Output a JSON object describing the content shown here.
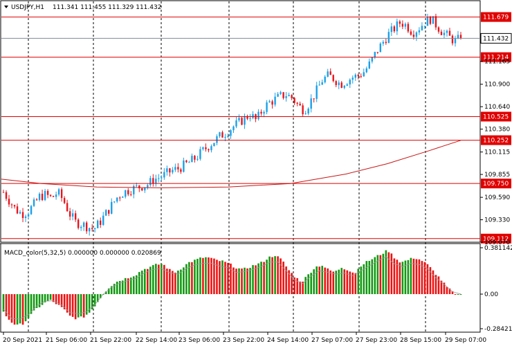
{
  "header": {
    "symbol_text": "USDJPY,H1",
    "ohlc_text": "111.341 111.455 111.329 111.432"
  },
  "price_axis": {
    "ticks": [
      "111.165",
      "110.900",
      "110.640",
      "110.380",
      "110.115",
      "109.855",
      "109.590",
      "109.330",
      "109.070"
    ]
  },
  "levels": [
    {
      "label": "111.679",
      "value": 111.679
    },
    {
      "label": "111.214",
      "value": 111.214
    },
    {
      "label": "110.525",
      "value": 110.525
    },
    {
      "label": "110.252",
      "value": 110.252
    },
    {
      "label": "109.750",
      "value": 109.75
    },
    {
      "label": "109.112",
      "value": 109.112
    }
  ],
  "current_price": {
    "label": "111.432",
    "value": 111.432
  },
  "time_axis": {
    "labels": [
      "20 Sep 2021",
      "21 Sep 06:00",
      "21 Sep 22:00",
      "22 Sep 14:00",
      "23 Sep 06:00",
      "23 Sep 22:00",
      "24 Sep 14:00",
      "27 Sep 07:00",
      "27 Sep 23:00",
      "28 Sep 15:00",
      "29 Sep 07:00"
    ]
  },
  "macd": {
    "title": "MACD_color(5,32,5) 0.000000 0.000000 0.020869",
    "ticks": [
      "0.381142",
      "0.00",
      "-0.284218"
    ]
  },
  "colors": {
    "bull": "#1aa0e8",
    "bear": "#e8141c",
    "level": "#e00000",
    "ma": "#c81414",
    "macd_up": "#119911",
    "macd_down": "#ee1111",
    "grid": "#000000",
    "bid_line": "#7d8a96"
  },
  "chart_data": {
    "type": "candlestick",
    "price_range": [
      109.07,
      111.86
    ],
    "macd_range": [
      -0.284218,
      0.381142
    ],
    "close_path": [
      109.65,
      109.55,
      109.45,
      109.4,
      109.42,
      109.5,
      109.6,
      109.62,
      109.58,
      109.65,
      109.55,
      109.4,
      109.3,
      109.28,
      109.25,
      109.22,
      109.3,
      109.4,
      109.5,
      109.6,
      109.65,
      109.68,
      109.7,
      109.72,
      109.74,
      109.8,
      109.82,
      109.86,
      109.9,
      109.92,
      109.96,
      110.0,
      110.05,
      110.12,
      110.18,
      110.24,
      110.3,
      110.34,
      110.4,
      110.45,
      110.5,
      110.55,
      110.48,
      110.6,
      110.68,
      110.72,
      110.76,
      110.78,
      110.74,
      110.65,
      110.6,
      110.7,
      110.82,
      110.95,
      111.0,
      110.96,
      110.9,
      110.94,
      110.98,
      111.0,
      111.05,
      111.15,
      111.28,
      111.38,
      111.48,
      111.55,
      111.62,
      111.58,
      111.5,
      111.55,
      111.62,
      111.66,
      111.58,
      111.5,
      111.45,
      111.4,
      111.43
    ],
    "macd_path": [
      -0.15,
      -0.22,
      -0.26,
      -0.24,
      -0.18,
      -0.12,
      -0.08,
      -0.05,
      -0.08,
      -0.12,
      -0.18,
      -0.2,
      -0.19,
      -0.15,
      -0.08,
      0.0,
      0.06,
      0.1,
      0.12,
      0.14,
      0.16,
      0.2,
      0.22,
      0.24,
      0.25,
      0.2,
      0.18,
      0.22,
      0.26,
      0.28,
      0.3,
      0.3,
      0.28,
      0.27,
      0.25,
      0.22,
      0.2,
      0.22,
      0.24,
      0.26,
      0.3,
      0.32,
      0.28,
      0.2,
      0.14,
      0.1,
      0.16,
      0.22,
      0.24,
      0.2,
      0.18,
      0.22,
      0.2,
      0.17,
      0.24,
      0.27,
      0.3,
      0.33,
      0.36,
      0.3,
      0.26,
      0.28,
      0.3,
      0.28,
      0.24,
      0.18,
      0.12,
      0.05,
      0.01,
      0.0
    ]
  }
}
